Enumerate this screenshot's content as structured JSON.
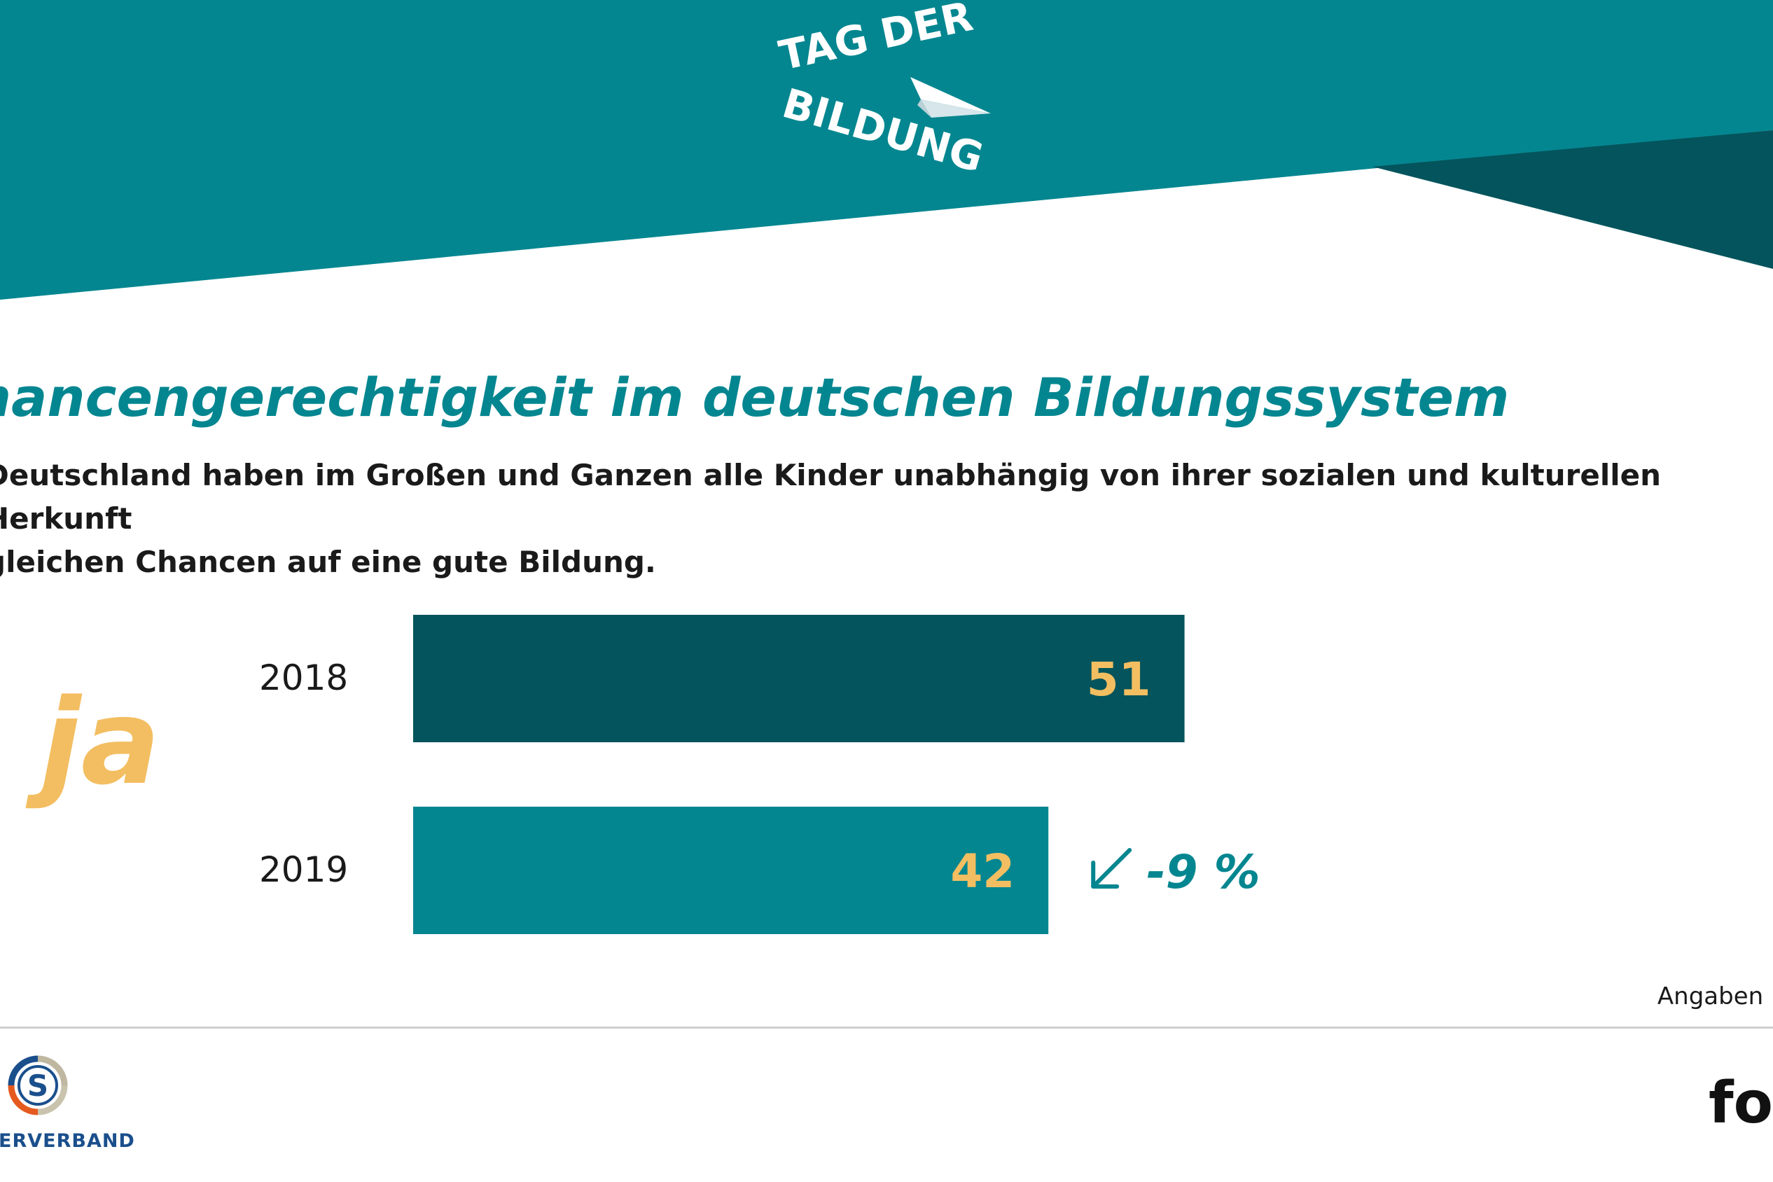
{
  "header": {
    "logo_line_1": "TAG DER",
    "logo_line_2": "BILDUNG",
    "colors": {
      "teal": "#048690",
      "dark_teal": "#03545c"
    }
  },
  "title": "hancengerechtigkeit im deutschen Bildungssystem",
  "subtitle": "Deutschland haben im Großen und Ganzen alle Kinder unabhängig von ihrer sozialen und kulturellen Herkunft\ngleichen Chancen auf eine gute Bildung.",
  "answer_label": "ja",
  "chart_data": {
    "type": "bar",
    "orientation": "horizontal",
    "categories": [
      "2018",
      "2019"
    ],
    "values": [
      51,
      42
    ],
    "value_labels": [
      "51",
      "42"
    ],
    "colors": [
      "#03545c",
      "#048690"
    ],
    "label_color": "#f3be61",
    "change": {
      "label": "-9 %",
      "direction": "down",
      "color": "#048690"
    },
    "title": "",
    "xlabel": "",
    "ylabel": "",
    "grid": false,
    "legend": "none"
  },
  "unit_note": "Angaben in",
  "footer": {
    "left_logo_letter": "S",
    "left_logo_text": "ERVERBAND",
    "right_logo_text": "fo"
  }
}
